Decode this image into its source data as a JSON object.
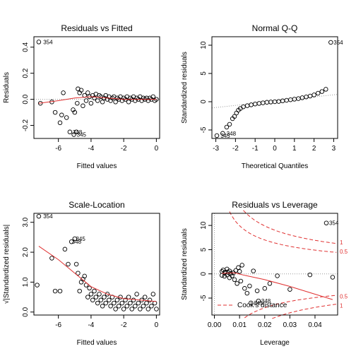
{
  "chart_data": [
    {
      "type": "scatter",
      "title": "Residuals vs Fitted",
      "xlabel": "Fitted values",
      "ylabel": "Residuals",
      "xlim": [
        -7.5,
        0.2
      ],
      "ylim": [
        -0.3,
        0.48
      ],
      "xticks": [
        "-6",
        "-4",
        "-2",
        "0"
      ],
      "yticks": [
        "-0.2",
        "0.0",
        "0.2",
        "0.4"
      ],
      "reference_line_y": 0,
      "annotations": [
        {
          "text": "354",
          "x": -7.1,
          "y": 0.44
        },
        {
          "text": "348",
          "x": -5.3,
          "y": -0.25
        },
        {
          "text": "345",
          "x": -5.05,
          "y": -0.27
        }
      ],
      "points": [
        [
          -7.2,
          0.44
        ],
        [
          -7.1,
          -0.03
        ],
        [
          -6.4,
          -0.02
        ],
        [
          -6.2,
          -0.1
        ],
        [
          -5.9,
          -0.18
        ],
        [
          -5.8,
          -0.12
        ],
        [
          -5.7,
          0.05
        ],
        [
          -5.5,
          -0.14
        ],
        [
          -5.3,
          -0.25
        ],
        [
          -5.1,
          -0.08
        ],
        [
          -5.05,
          -0.27
        ],
        [
          -5.0,
          -0.1
        ],
        [
          -4.9,
          -0.25
        ],
        [
          -4.85,
          -0.03
        ],
        [
          -4.8,
          0.08
        ],
        [
          -4.7,
          0.05
        ],
        [
          -4.6,
          0.07
        ],
        [
          -4.5,
          -0.05
        ],
        [
          -4.4,
          0.03
        ],
        [
          -4.3,
          -0.01
        ],
        [
          -4.2,
          0.05
        ],
        [
          -4.1,
          0.02
        ],
        [
          -4.0,
          -0.03
        ],
        [
          -3.9,
          0.03
        ],
        [
          -3.8,
          0.01
        ],
        [
          -3.7,
          0.04
        ],
        [
          -3.6,
          -0.01
        ],
        [
          -3.5,
          0.03
        ],
        [
          -3.4,
          0.02
        ],
        [
          -3.3,
          -0.02
        ],
        [
          -3.2,
          0.01
        ],
        [
          -3.1,
          0.03
        ],
        [
          -3.0,
          0.0
        ],
        [
          -2.9,
          0.02
        ],
        [
          -2.8,
          -0.01
        ],
        [
          -2.7,
          0.01
        ],
        [
          -2.6,
          0.02
        ],
        [
          -2.5,
          -0.02
        ],
        [
          -2.4,
          0.01
        ],
        [
          -2.3,
          0.0
        ],
        [
          -2.2,
          0.02
        ],
        [
          -2.1,
          -0.01
        ],
        [
          -2.0,
          0.01
        ],
        [
          -1.9,
          0.0
        ],
        [
          -1.8,
          0.02
        ],
        [
          -1.7,
          -0.02
        ],
        [
          -1.6,
          0.01
        ],
        [
          -1.5,
          0.0
        ],
        [
          -1.4,
          0.02
        ],
        [
          -1.3,
          -0.01
        ],
        [
          -1.2,
          0.01
        ],
        [
          -1.1,
          0.0
        ],
        [
          -1.0,
          0.02
        ],
        [
          -0.9,
          -0.01
        ],
        [
          -0.8,
          0.01
        ],
        [
          -0.7,
          0.0
        ],
        [
          -0.6,
          0.01
        ],
        [
          -0.5,
          -0.01
        ],
        [
          -0.4,
          0.01
        ],
        [
          -0.3,
          0.0
        ],
        [
          -0.2,
          0.02
        ],
        [
          -0.1,
          -0.01
        ],
        [
          0.0,
          0.0
        ]
      ],
      "smooth": [
        [
          -7.2,
          -0.03
        ],
        [
          -6,
          -0.01
        ],
        [
          -5,
          0.01
        ],
        [
          -4,
          0.02
        ],
        [
          -3,
          0.01
        ],
        [
          -2,
          0.0
        ],
        [
          -1,
          0.0
        ],
        [
          0,
          0.0
        ]
      ]
    },
    {
      "type": "scatter",
      "title": "Normal Q-Q",
      "xlabel": "Theoretical Quantiles",
      "ylabel": "Standardized residuals",
      "xlim": [
        -3.2,
        3.2
      ],
      "ylim": [
        -6.5,
        11.5
      ],
      "xticks": [
        "-3",
        "-2",
        "-1",
        "0",
        "1",
        "2",
        "3"
      ],
      "yticks": [
        "-5",
        "0",
        "5",
        "10"
      ],
      "reference_line": [
        [
          -3.2,
          -1.1
        ],
        [
          3.2,
          1.3
        ]
      ],
      "annotations": [
        {
          "text": "354",
          "x": 2.85,
          "y": 10.5
        },
        {
          "text": "345",
          "x": -2.9,
          "y": -6.0
        },
        {
          "text": "348",
          "x": -2.6,
          "y": -5.6
        }
      ],
      "points": [
        [
          -2.95,
          -6.0
        ],
        [
          -2.65,
          -5.6
        ],
        [
          -2.45,
          -4.5
        ],
        [
          -2.3,
          -4.0
        ],
        [
          -2.15,
          -3.0
        ],
        [
          -2.05,
          -2.6
        ],
        [
          -1.95,
          -2.0
        ],
        [
          -1.85,
          -1.5
        ],
        [
          -1.75,
          -1.2
        ],
        [
          -1.6,
          -0.9
        ],
        [
          -1.4,
          -0.7
        ],
        [
          -1.2,
          -0.55
        ],
        [
          -1.0,
          -0.4
        ],
        [
          -0.8,
          -0.3
        ],
        [
          -0.6,
          -0.2
        ],
        [
          -0.4,
          -0.1
        ],
        [
          -0.2,
          -0.05
        ],
        [
          0.0,
          0.0
        ],
        [
          0.2,
          0.05
        ],
        [
          0.4,
          0.15
        ],
        [
          0.6,
          0.25
        ],
        [
          0.8,
          0.35
        ],
        [
          1.0,
          0.45
        ],
        [
          1.2,
          0.55
        ],
        [
          1.4,
          0.7
        ],
        [
          1.6,
          0.85
        ],
        [
          1.8,
          1.0
        ],
        [
          2.0,
          1.2
        ],
        [
          2.2,
          1.5
        ],
        [
          2.4,
          1.8
        ],
        [
          2.6,
          2.2
        ],
        [
          2.85,
          10.5
        ]
      ]
    },
    {
      "type": "scatter",
      "title": "Scale-Location",
      "xlabel": "Fitted values",
      "ylabel": "√|Standardized residuals|",
      "xlim": [
        -7.5,
        0.2
      ],
      "ylim": [
        -0.1,
        3.3
      ],
      "xticks": [
        "-6",
        "-4",
        "-2",
        "0"
      ],
      "yticks": [
        "0.0",
        "1.0",
        "2.0",
        "3.0"
      ],
      "annotations": [
        {
          "text": "354",
          "x": -7.1,
          "y": 3.2
        },
        {
          "text": "345",
          "x": -5.1,
          "y": 2.45
        },
        {
          "text": "348",
          "x": -5.35,
          "y": 2.35
        }
      ],
      "points": [
        [
          -7.2,
          3.2
        ],
        [
          -7.3,
          0.9
        ],
        [
          -6.4,
          1.8
        ],
        [
          -6.2,
          0.7
        ],
        [
          -5.9,
          0.7
        ],
        [
          -5.6,
          2.1
        ],
        [
          -5.4,
          1.6
        ],
        [
          -5.2,
          2.35
        ],
        [
          -5.0,
          2.45
        ],
        [
          -4.9,
          1.6
        ],
        [
          -4.8,
          1.3
        ],
        [
          -4.7,
          0.7
        ],
        [
          -4.6,
          1.0
        ],
        [
          -4.5,
          1.1
        ],
        [
          -4.4,
          1.2
        ],
        [
          -4.3,
          0.9
        ],
        [
          -4.2,
          0.5
        ],
        [
          -4.1,
          0.8
        ],
        [
          -4.0,
          0.6
        ],
        [
          -3.9,
          0.4
        ],
        [
          -3.8,
          0.7
        ],
        [
          -3.7,
          0.5
        ],
        [
          -3.6,
          0.3
        ],
        [
          -3.5,
          0.6
        ],
        [
          -3.4,
          0.4
        ],
        [
          -3.3,
          0.2
        ],
        [
          -3.2,
          0.5
        ],
        [
          -3.1,
          0.3
        ],
        [
          -3.0,
          0.6
        ],
        [
          -2.9,
          0.4
        ],
        [
          -2.8,
          0.2
        ],
        [
          -2.7,
          0.5
        ],
        [
          -2.6,
          0.3
        ],
        [
          -2.5,
          0.1
        ],
        [
          -2.4,
          0.4
        ],
        [
          -2.3,
          0.2
        ],
        [
          -2.2,
          0.5
        ],
        [
          -2.1,
          0.3
        ],
        [
          -2.0,
          0.1
        ],
        [
          -1.9,
          0.4
        ],
        [
          -1.8,
          0.2
        ],
        [
          -1.7,
          0.5
        ],
        [
          -1.6,
          0.3
        ],
        [
          -1.5,
          0.1
        ],
        [
          -1.4,
          0.4
        ],
        [
          -1.3,
          0.2
        ],
        [
          -1.2,
          0.6
        ],
        [
          -1.1,
          0.3
        ],
        [
          -1.0,
          0.1
        ],
        [
          -0.9,
          0.4
        ],
        [
          -0.8,
          0.2
        ],
        [
          -0.7,
          0.5
        ],
        [
          -0.6,
          0.3
        ],
        [
          -0.5,
          0.1
        ],
        [
          -0.4,
          0.4
        ],
        [
          -0.3,
          0.2
        ],
        [
          -0.2,
          0.6
        ],
        [
          -0.1,
          0.3
        ],
        [
          0.0,
          0.1
        ]
      ],
      "smooth": [
        [
          -7.2,
          2.2
        ],
        [
          -6,
          1.75
        ],
        [
          -5,
          1.3
        ],
        [
          -4,
          0.85
        ],
        [
          -3,
          0.6
        ],
        [
          -2,
          0.45
        ],
        [
          -1,
          0.4
        ],
        [
          0,
          0.35
        ]
      ]
    },
    {
      "type": "scatter",
      "title": "Residuals vs Leverage",
      "xlabel": "Leverage",
      "ylabel": "Standardized residuals",
      "xlim": [
        -0.001,
        0.049
      ],
      "ylim": [
        -8.5,
        12.5
      ],
      "xticks": [
        "0.00",
        "0.01",
        "0.02",
        "0.03",
        "0.04"
      ],
      "yticks": [
        "-5",
        "0",
        "5",
        "10"
      ],
      "legend": "Cook's distance",
      "contour_labels": [
        "1",
        "0.5",
        "0.5",
        "1"
      ],
      "annotations": [
        {
          "text": "354",
          "x": 0.0445,
          "y": 10.5
        },
        {
          "text": "345",
          "x": 0.0145,
          "y": -6.0
        },
        {
          "text": "348",
          "x": 0.0175,
          "y": -5.6
        }
      ],
      "points": [
        [
          0.003,
          0.5
        ],
        [
          0.003,
          -0.3
        ],
        [
          0.0035,
          0.8
        ],
        [
          0.004,
          0.2
        ],
        [
          0.004,
          -0.5
        ],
        [
          0.0045,
          0.4
        ],
        [
          0.005,
          1.0
        ],
        [
          0.005,
          -0.2
        ],
        [
          0.0055,
          0.3
        ],
        [
          0.006,
          -0.8
        ],
        [
          0.006,
          0.6
        ],
        [
          0.0065,
          0.1
        ],
        [
          0.007,
          -0.4
        ],
        [
          0.0075,
          0.2
        ],
        [
          0.008,
          -1.2
        ],
        [
          0.0085,
          0.7
        ],
        [
          0.009,
          -2.0
        ],
        [
          0.0095,
          1.3
        ],
        [
          0.01,
          0.5
        ],
        [
          0.0105,
          -1.5
        ],
        [
          0.011,
          1.8
        ],
        [
          0.012,
          -3.0
        ],
        [
          0.013,
          -4.0
        ],
        [
          0.014,
          -2.5
        ],
        [
          0.0145,
          -6.0
        ],
        [
          0.0155,
          0.6
        ],
        [
          0.017,
          -3.5
        ],
        [
          0.0175,
          -5.6
        ],
        [
          0.02,
          -3.0
        ],
        [
          0.022,
          -2.0
        ],
        [
          0.025,
          -0.4
        ],
        [
          0.03,
          -3.2
        ],
        [
          0.038,
          -0.2
        ],
        [
          0.0445,
          10.5
        ],
        [
          0.047,
          -0.7
        ]
      ],
      "smooth": [
        [
          0.003,
          0.1
        ],
        [
          0.008,
          0.2
        ],
        [
          0.012,
          -0.3
        ],
        [
          0.02,
          -1.2
        ],
        [
          0.03,
          -2.6
        ],
        [
          0.04,
          -4.2
        ],
        [
          0.047,
          -5.3
        ]
      ]
    }
  ]
}
